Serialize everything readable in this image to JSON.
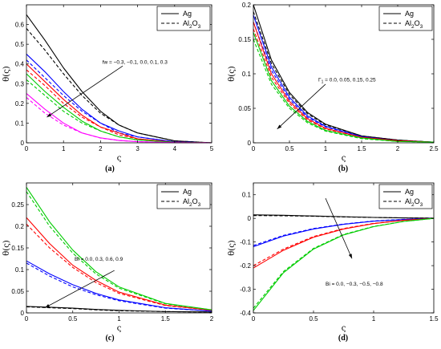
{
  "chart_data": [
    {
      "type": "line",
      "panel": "a",
      "caption": "(a)",
      "xlabel": "ς",
      "ylabel": "θ(ς)",
      "xlim": [
        0,
        5
      ],
      "ylim": [
        0,
        0.7
      ],
      "xticks": [
        "0",
        "1",
        "2",
        "3",
        "4",
        "5"
      ],
      "yticks": [
        "0",
        "0.1",
        "0.2",
        "0.3",
        "0.4",
        "0.5",
        "0.6"
      ],
      "legend": [
        "Ag",
        "Al2O3"
      ],
      "legend_position": "top-right",
      "annotation": "fw = −0.3, −0.1, 0.0, 0.1, 0.3",
      "series": [
        {
          "color": "#000000",
          "x": [
            0,
            0.5,
            1,
            1.5,
            2,
            2.5,
            3,
            4,
            5
          ],
          "ag": [
            0.65,
            0.52,
            0.38,
            0.26,
            0.16,
            0.09,
            0.05,
            0.01,
            0.0
          ],
          "al2o3": [
            0.58,
            0.47,
            0.35,
            0.24,
            0.15,
            0.09,
            0.05,
            0.01,
            0.0
          ]
        },
        {
          "color": "#0000ff",
          "x": [
            0,
            0.5,
            1,
            1.5,
            2,
            2.5,
            3,
            4,
            5
          ],
          "ag": [
            0.45,
            0.36,
            0.26,
            0.17,
            0.1,
            0.06,
            0.03,
            0.005,
            0.0
          ],
          "al2o3": [
            0.42,
            0.33,
            0.24,
            0.16,
            0.1,
            0.05,
            0.03,
            0.005,
            0.0
          ]
        },
        {
          "color": "#ff0000",
          "x": [
            0,
            0.5,
            1,
            1.5,
            2,
            2.5,
            3,
            4,
            5
          ],
          "ag": [
            0.4,
            0.31,
            0.22,
            0.14,
            0.08,
            0.05,
            0.02,
            0.003,
            0.0
          ],
          "al2o3": [
            0.37,
            0.29,
            0.2,
            0.13,
            0.08,
            0.04,
            0.02,
            0.003,
            0.0
          ]
        },
        {
          "color": "#00cc00",
          "x": [
            0,
            0.5,
            1,
            1.5,
            2,
            2.5,
            3,
            4,
            5
          ],
          "ag": [
            0.35,
            0.26,
            0.18,
            0.11,
            0.06,
            0.03,
            0.015,
            0.002,
            0.0
          ],
          "al2o3": [
            0.32,
            0.24,
            0.16,
            0.1,
            0.06,
            0.03,
            0.015,
            0.002,
            0.0
          ]
        },
        {
          "color": "#ff00ff",
          "x": [
            0,
            0.5,
            1,
            1.5,
            2,
            2.5,
            3,
            4,
            5
          ],
          "ag": [
            0.25,
            0.17,
            0.1,
            0.05,
            0.025,
            0.012,
            0.006,
            0.001,
            0.0
          ],
          "al2o3": [
            0.23,
            0.15,
            0.09,
            0.05,
            0.024,
            0.012,
            0.006,
            0.001,
            0.0
          ]
        }
      ]
    },
    {
      "type": "line",
      "panel": "b",
      "caption": "(b)",
      "xlabel": "ς",
      "ylabel": "θ(ς)",
      "xlim": [
        0,
        2.5
      ],
      "ylim": [
        0,
        0.2
      ],
      "xticks": [
        "0",
        "0.5",
        "1",
        "1.5",
        "2",
        "2.5"
      ],
      "yticks": [
        "0",
        "0.05",
        "0.1",
        "0.15",
        "0.2"
      ],
      "legend": [
        "Ag",
        "Al2O3"
      ],
      "legend_position": "top-right",
      "annotation": "Γ1 = 0.0, 0.05, 0.15, 0.25",
      "series": [
        {
          "color": "#000000",
          "x": [
            0,
            0.25,
            0.5,
            0.75,
            1,
            1.5,
            2,
            2.5
          ],
          "ag": [
            0.2,
            0.12,
            0.073,
            0.044,
            0.027,
            0.01,
            0.004,
            0.001
          ],
          "al2o3": [
            0.19,
            0.115,
            0.07,
            0.042,
            0.026,
            0.01,
            0.004,
            0.001
          ]
        },
        {
          "color": "#0000ff",
          "x": [
            0,
            0.25,
            0.5,
            0.75,
            1,
            1.5,
            2,
            2.5
          ],
          "ag": [
            0.185,
            0.11,
            0.066,
            0.039,
            0.024,
            0.009,
            0.003,
            0.001
          ],
          "al2o3": [
            0.175,
            0.105,
            0.063,
            0.037,
            0.023,
            0.009,
            0.003,
            0.001
          ]
        },
        {
          "color": "#ff0000",
          "x": [
            0,
            0.25,
            0.5,
            0.75,
            1,
            1.5,
            2,
            2.5
          ],
          "ag": [
            0.175,
            0.1,
            0.06,
            0.035,
            0.021,
            0.008,
            0.003,
            0.001
          ],
          "al2o3": [
            0.165,
            0.095,
            0.057,
            0.033,
            0.02,
            0.008,
            0.003,
            0.001
          ]
        },
        {
          "color": "#00cc00",
          "x": [
            0,
            0.25,
            0.5,
            0.75,
            1,
            1.5,
            2,
            2.5
          ],
          "ag": [
            0.16,
            0.09,
            0.053,
            0.031,
            0.018,
            0.007,
            0.002,
            0.001
          ],
          "al2o3": [
            0.15,
            0.085,
            0.05,
            0.029,
            0.017,
            0.006,
            0.002,
            0.001
          ]
        }
      ]
    },
    {
      "type": "line",
      "panel": "c",
      "caption": "(c)",
      "xlabel": "ς",
      "ylabel": "θ(ς)",
      "xlim": [
        0,
        2
      ],
      "ylim": [
        0,
        0.3
      ],
      "xticks": [
        "0",
        "0.5",
        "1",
        "1.5",
        "2"
      ],
      "yticks": [
        "0",
        "0.05",
        "0.1",
        "0.15",
        "0.2",
        "0.25"
      ],
      "legend": [
        "Ag",
        "Al2O3"
      ],
      "legend_position": "top-right",
      "annotation": "Bi = 0.0, 0.3, 0.6, 0.9",
      "series": [
        {
          "color": "#000000",
          "x": [
            0,
            0.25,
            0.5,
            0.75,
            1,
            1.5,
            2
          ],
          "ag": [
            0.015,
            0.013,
            0.011,
            0.008,
            0.006,
            0.003,
            0.002
          ],
          "al2o3": [
            0.014,
            0.012,
            0.01,
            0.007,
            0.005,
            0.003,
            0.002
          ]
        },
        {
          "color": "#0000ff",
          "x": [
            0,
            0.25,
            0.5,
            0.75,
            1,
            1.5,
            2
          ],
          "ag": [
            0.12,
            0.09,
            0.065,
            0.045,
            0.03,
            0.012,
            0.004
          ],
          "al2o3": [
            0.115,
            0.085,
            0.06,
            0.042,
            0.028,
            0.011,
            0.004
          ]
        },
        {
          "color": "#ff0000",
          "x": [
            0,
            0.25,
            0.5,
            0.75,
            1,
            1.5,
            2
          ],
          "ag": [
            0.22,
            0.16,
            0.11,
            0.075,
            0.048,
            0.018,
            0.006
          ],
          "al2o3": [
            0.205,
            0.15,
            0.105,
            0.07,
            0.045,
            0.017,
            0.006
          ]
        },
        {
          "color": "#00cc00",
          "x": [
            0,
            0.25,
            0.5,
            0.75,
            1,
            1.5,
            2
          ],
          "ag": [
            0.29,
            0.21,
            0.145,
            0.095,
            0.06,
            0.022,
            0.007
          ],
          "al2o3": [
            0.28,
            0.2,
            0.138,
            0.09,
            0.057,
            0.021,
            0.007
          ]
        }
      ]
    },
    {
      "type": "line",
      "panel": "d",
      "caption": "(d)",
      "xlabel": "ς",
      "ylabel": "θ(ς)",
      "xlim": [
        0,
        1.5
      ],
      "ylim": [
        -0.4,
        0.15
      ],
      "xticks": [
        "0",
        "0.5",
        "1",
        "1.5"
      ],
      "yticks": [
        "-0.4",
        "-0.3",
        "-0.2",
        "-0.1",
        "0",
        "0.1"
      ],
      "legend": [
        "Ag",
        "Al2O3"
      ],
      "legend_position": "top-right",
      "annotation": "Bi = 0.0, −0.3, −0.5, −0.8",
      "series": [
        {
          "color": "#000000",
          "x": [
            0,
            0.25,
            0.5,
            0.75,
            1,
            1.25,
            1.5
          ],
          "ag": [
            0.015,
            0.013,
            0.01,
            0.007,
            0.004,
            0.002,
            0.001
          ],
          "al2o3": [
            0.012,
            0.011,
            0.009,
            0.006,
            0.004,
            0.002,
            0.001
          ]
        },
        {
          "color": "#0000ff",
          "x": [
            0,
            0.25,
            0.5,
            0.75,
            1,
            1.25,
            1.5
          ],
          "ag": [
            -0.12,
            -0.075,
            -0.045,
            -0.025,
            -0.012,
            -0.005,
            0.0
          ],
          "al2o3": [
            -0.115,
            -0.072,
            -0.043,
            -0.024,
            -0.011,
            -0.004,
            0.0
          ]
        },
        {
          "color": "#ff0000",
          "x": [
            0,
            0.25,
            0.5,
            0.75,
            1,
            1.25,
            1.5
          ],
          "ag": [
            -0.21,
            -0.135,
            -0.08,
            -0.045,
            -0.022,
            -0.008,
            0.0
          ],
          "al2o3": [
            -0.2,
            -0.13,
            -0.077,
            -0.043,
            -0.021,
            -0.008,
            0.0
          ]
        },
        {
          "color": "#00cc00",
          "x": [
            0,
            0.25,
            0.5,
            0.75,
            1,
            1.25,
            1.5
          ],
          "ag": [
            -0.39,
            -0.23,
            -0.13,
            -0.07,
            -0.035,
            -0.013,
            0.0
          ],
          "al2o3": [
            -0.38,
            -0.225,
            -0.127,
            -0.068,
            -0.034,
            -0.013,
            0.0
          ]
        }
      ]
    }
  ]
}
